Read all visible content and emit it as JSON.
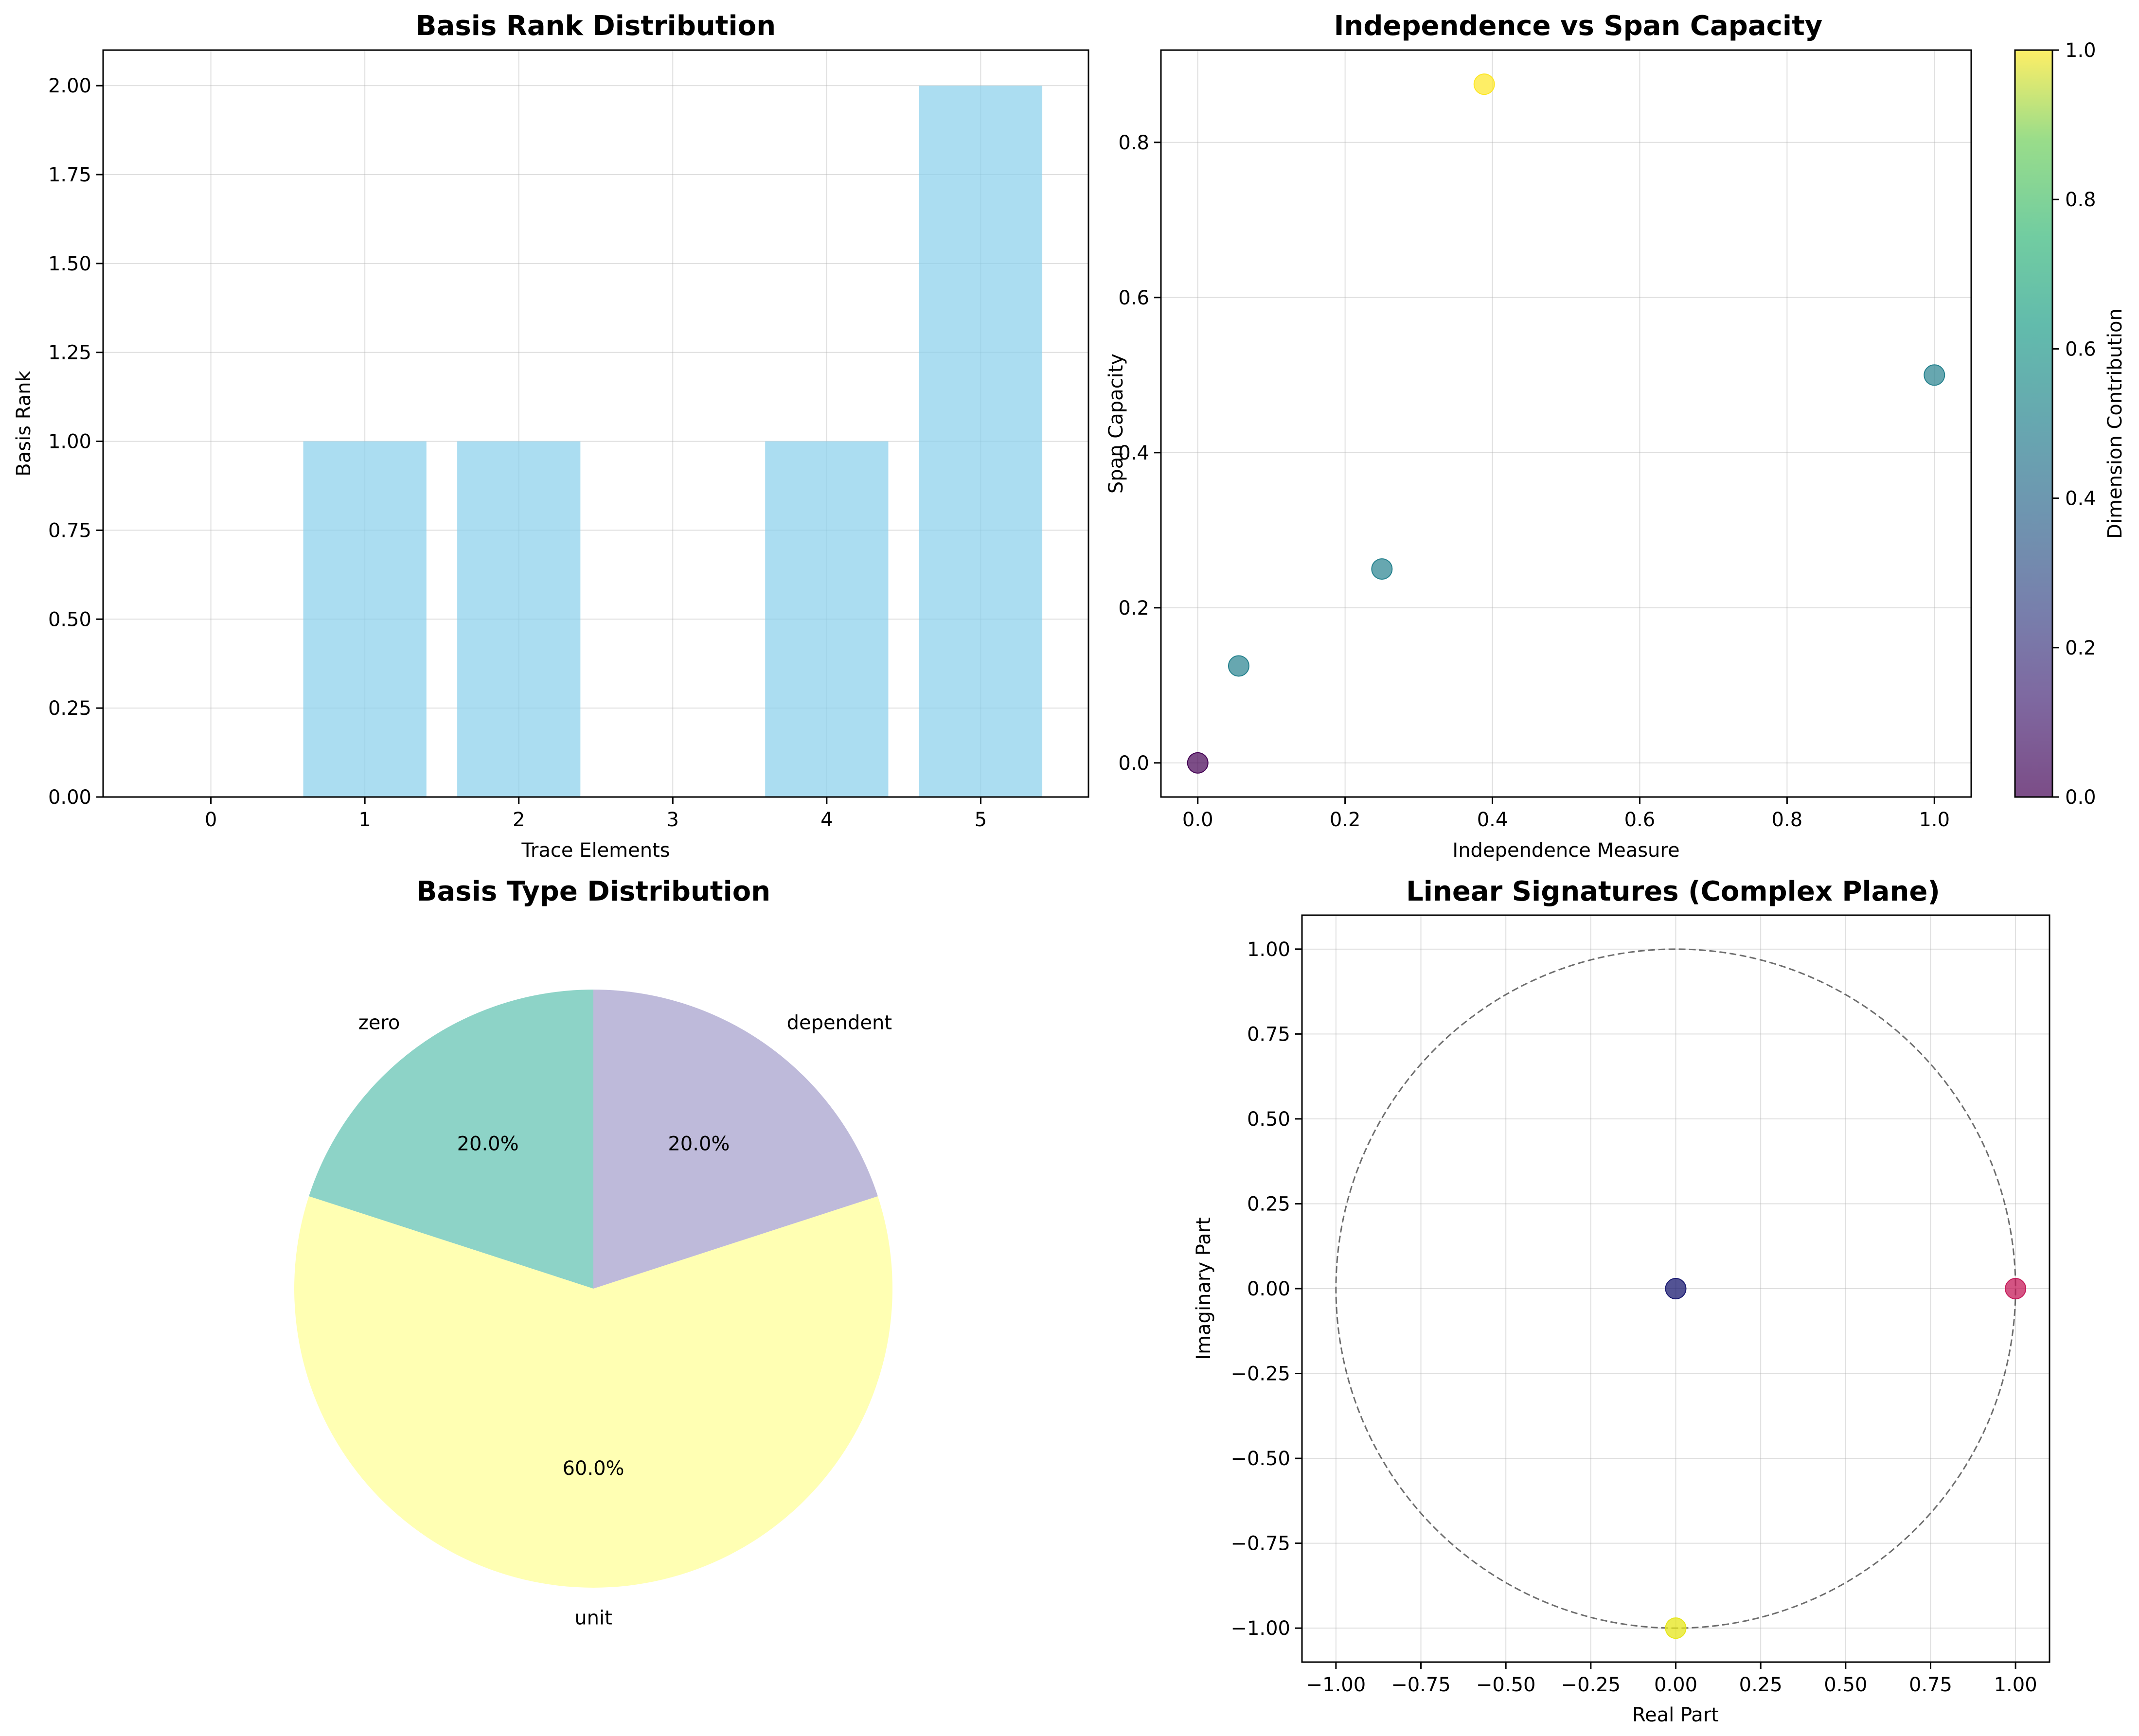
{
  "chart_data": [
    {
      "type": "bar",
      "title": "Basis Rank Distribution",
      "xlabel": "Trace Elements",
      "ylabel": "Basis Rank",
      "categories": [
        0,
        1,
        2,
        3,
        4,
        5
      ],
      "values": [
        0,
        1,
        1,
        0,
        1,
        2
      ],
      "xlim": [
        -0.7,
        5.7
      ],
      "ylim": [
        0,
        2.1
      ],
      "xticks": [
        "0",
        "1",
        "2",
        "3",
        "4",
        "5"
      ],
      "yticks": [
        "0.00",
        "0.25",
        "0.50",
        "0.75",
        "1.00",
        "1.25",
        "1.50",
        "1.75",
        "2.00"
      ],
      "color": "#87ceeb",
      "grid": true
    },
    {
      "type": "scatter",
      "title": "Independence vs Span Capacity",
      "xlabel": "Independence Measure",
      "ylabel": "Span Capacity",
      "points": [
        {
          "x": 0.0,
          "y": 0.0,
          "c": 0.0
        },
        {
          "x": 0.0556,
          "y": 0.125,
          "c": 0.5
        },
        {
          "x": 0.25,
          "y": 0.25,
          "c": 0.5
        },
        {
          "x": 0.3889,
          "y": 0.875,
          "c": 1.0
        },
        {
          "x": 1.0,
          "y": 0.5,
          "c": 0.5
        }
      ],
      "xlim": [
        -0.05,
        1.05
      ],
      "ylim": [
        -0.044,
        0.919
      ],
      "xticks": [
        "0.0",
        "0.2",
        "0.4",
        "0.6",
        "0.8",
        "1.0"
      ],
      "yticks": [
        "0.0",
        "0.2",
        "0.4",
        "0.6",
        "0.8"
      ],
      "colormap": "viridis",
      "colorbar": {
        "label": "Dimension Contribution",
        "range": [
          0,
          1
        ],
        "ticks": [
          "0.0",
          "0.2",
          "0.4",
          "0.6",
          "0.8",
          "1.0"
        ]
      },
      "grid": true
    },
    {
      "type": "pie",
      "title": "Basis Type Distribution",
      "slices": [
        {
          "label": "zero",
          "value": 20.0,
          "pct": "20.0%",
          "color": "#8dd3c7"
        },
        {
          "label": "unit",
          "value": 60.0,
          "pct": "60.0%",
          "color": "#ffffb3"
        },
        {
          "label": "dependent",
          "value": 20.0,
          "pct": "20.0%",
          "color": "#bebada"
        }
      ],
      "startangle": 90
    },
    {
      "type": "scatter",
      "title": "Linear Signatures (Complex Plane)",
      "xlabel": "Real Part",
      "ylabel": "Imaginary Part",
      "points": [
        {
          "x": 0.0,
          "y": 0.0,
          "color": "#191970"
        },
        {
          "x": 1.0,
          "y": 0.0,
          "color": "#c51b5a"
        },
        {
          "x": 0.0,
          "y": -1.0,
          "color": "#e6e61a"
        }
      ],
      "unit_circle": true,
      "xlim": [
        -1.1,
        1.1
      ],
      "ylim": [
        -1.1,
        1.1
      ],
      "xticks": [
        "−1.00",
        "−0.75",
        "−0.50",
        "−0.25",
        "0.00",
        "0.25",
        "0.50",
        "0.75",
        "1.00"
      ],
      "yticks": [
        "−1.00",
        "−0.75",
        "−0.50",
        "−0.25",
        "0.00",
        "0.25",
        "0.50",
        "0.75",
        "1.00"
      ],
      "grid": true
    }
  ]
}
